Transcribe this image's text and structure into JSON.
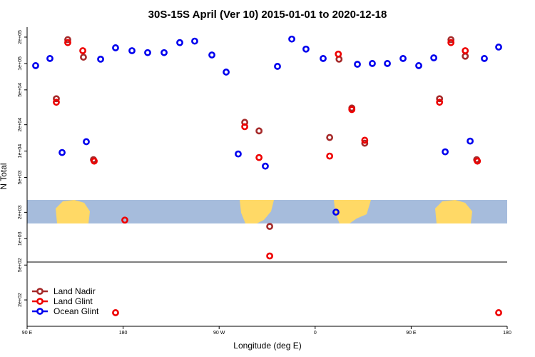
{
  "chart_data": {
    "type": "scatter",
    "title": "30S-15S April (Ver 10)   2015-01-01 to 2020-12-18",
    "x_label": "Longitude (deg E)",
    "y_label": "N Total",
    "log_y": true,
    "legend": "bottomleft",
    "xlim": [
      90,
      540
    ],
    "xticks": [
      {
        "value": 90,
        "label": "90 E"
      },
      180,
      {
        "value": 270,
        "label": "90 W"
      },
      {
        "value": 360,
        "label": "0"
      },
      {
        "value": 450,
        "label": "90 E"
      },
      {
        "value": 540,
        "label": "180"
      }
    ],
    "ylim": [
      100,
      260000
    ],
    "yticks": [
      {
        "value": 200000,
        "label": "2e+05"
      },
      {
        "value": 100000,
        "label": "1e+05"
      },
      {
        "value": 50000,
        "label": "5e+04"
      },
      {
        "value": 20000,
        "label": "2e+04"
      },
      {
        "value": 10000,
        "label": "1e+04"
      },
      {
        "value": 5000,
        "label": "5e+03"
      },
      {
        "value": 2000,
        "label": "2e+03"
      },
      {
        "value": 1000,
        "label": "1e+03"
      },
      {
        "value": 500,
        "label": "5e+02"
      },
      {
        "value": 200,
        "label": "2e+02"
      }
    ],
    "series": [
      {
        "name": "Land Nadir",
        "color": "#a52a2a",
        "x": [
          117.4,
          128.1,
          142.8,
          152.2,
          294,
          307.4,
          317.4,
          373.6,
          382.4,
          394.4,
          406.5,
          476.6,
          487.3,
          500.7,
          511.4
        ],
        "values": [
          39600,
          187000,
          118000,
          7980,
          21300,
          17000,
          1380,
          14300,
          112000,
          31000,
          12300,
          39600,
          187000,
          121000,
          7980
        ]
      },
      {
        "name": "Land Glint",
        "color": "#ee0000",
        "x": [
          117.4,
          128.1,
          142.2,
          152.9,
          181.6,
          172.9,
          294,
          307.4,
          317.4,
          373.6,
          381.7,
          394.4,
          406.5,
          476.6,
          487.3,
          500.7,
          512.1,
          532
        ],
        "values": [
          36100,
          173000,
          140000,
          7680,
          1630,
          143,
          19000,
          8440,
          635,
          8770,
          128000,
          29800,
          13300,
          36100,
          173000,
          140000,
          7680,
          143
        ]
      },
      {
        "name": "Ocean Glint",
        "color": "#0000ee",
        "x": [
          98,
          111.4,
          122.8,
          145.5,
          158.9,
          172.9,
          188.3,
          203,
          218.4,
          233.1,
          247.1,
          263.2,
          276.6,
          287.9,
          313.3,
          324.7,
          338.1,
          351.4,
          367.5,
          379.5,
          399.6,
          413.6,
          427.7,
          442.4,
          457.1,
          471.2,
          481.9,
          505.3,
          518.6,
          532
        ],
        "values": [
          94500,
          114000,
          9630,
          12800,
          112000,
          151000,
          140000,
          133000,
          133000,
          173000,
          180000,
          125000,
          79800,
          9270,
          6730,
          92700,
          190000,
          146000,
          114000,
          2010,
          98000,
          100000,
          100000,
          114000,
          94500,
          116000,
          9810,
          13000,
          114000,
          154000
        ]
      }
    ]
  }
}
